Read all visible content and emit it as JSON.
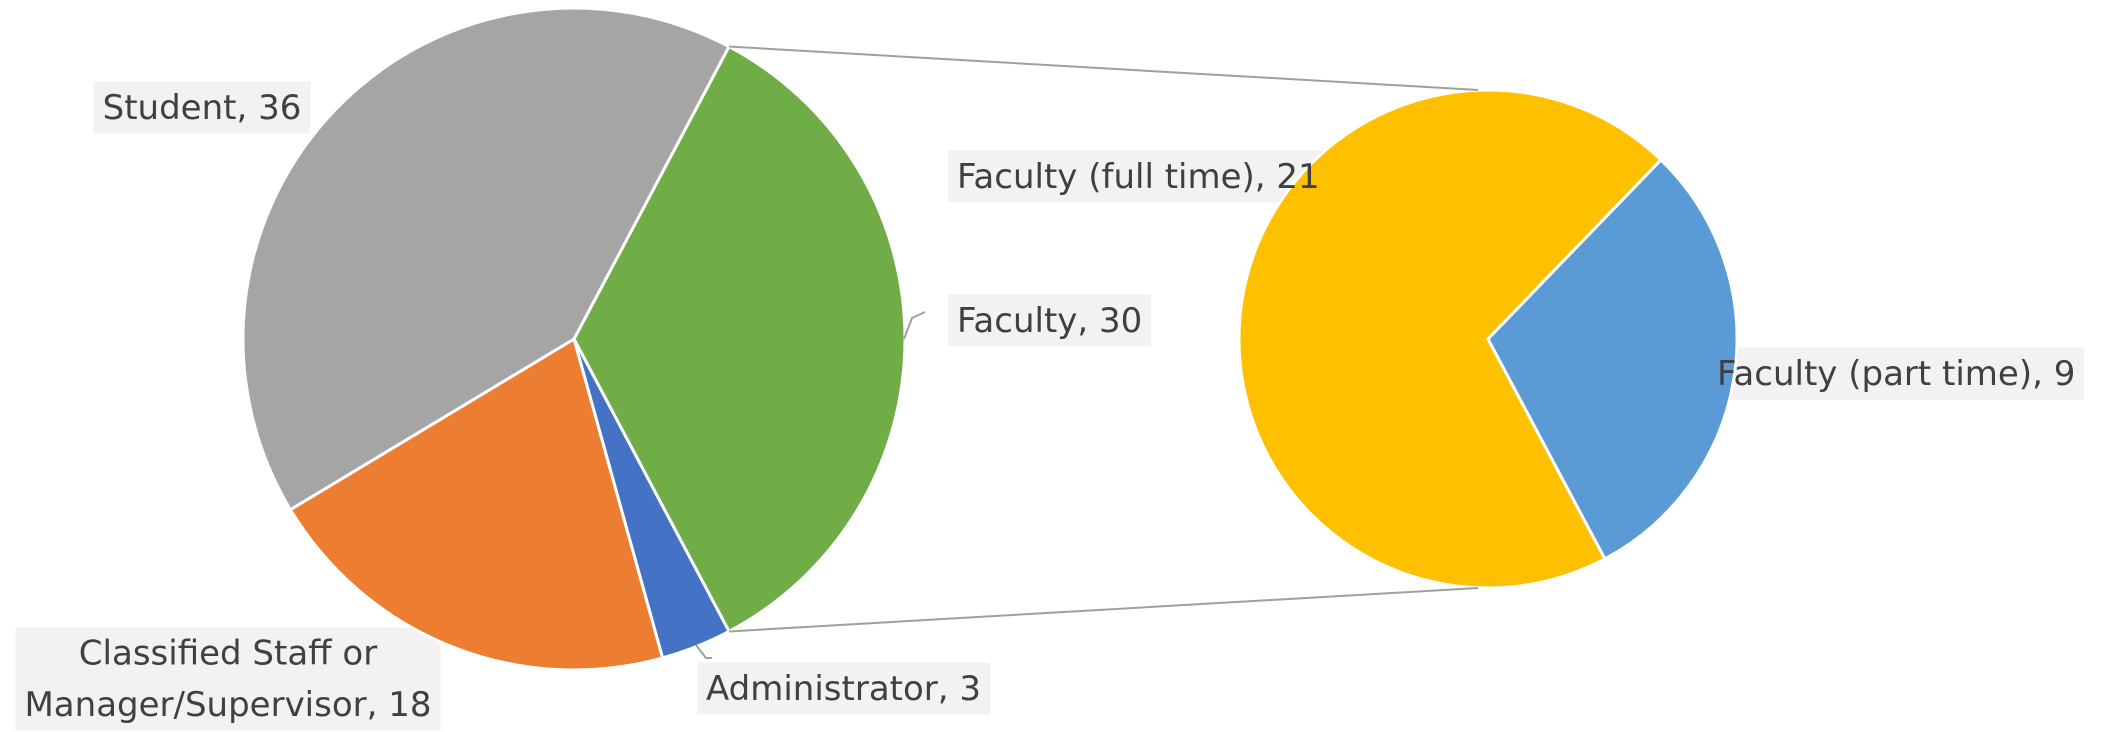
{
  "chart_data": {
    "type": "pie_of_pie",
    "categories": [
      "Faculty",
      "Administrator",
      "Classified Staff or Manager/Supervisor",
      "Student"
    ],
    "values": [
      30,
      3,
      18,
      36
    ],
    "colors": [
      "#70ad47",
      "#4472c4",
      "#ed7d31",
      "#a5a5a5"
    ],
    "secondary": {
      "categories": [
        "Faculty (full time)",
        "Faculty (part time)"
      ],
      "values": [
        21,
        9
      ],
      "colors": [
        "#ffc000",
        "#5b9bd5"
      ]
    }
  }
}
